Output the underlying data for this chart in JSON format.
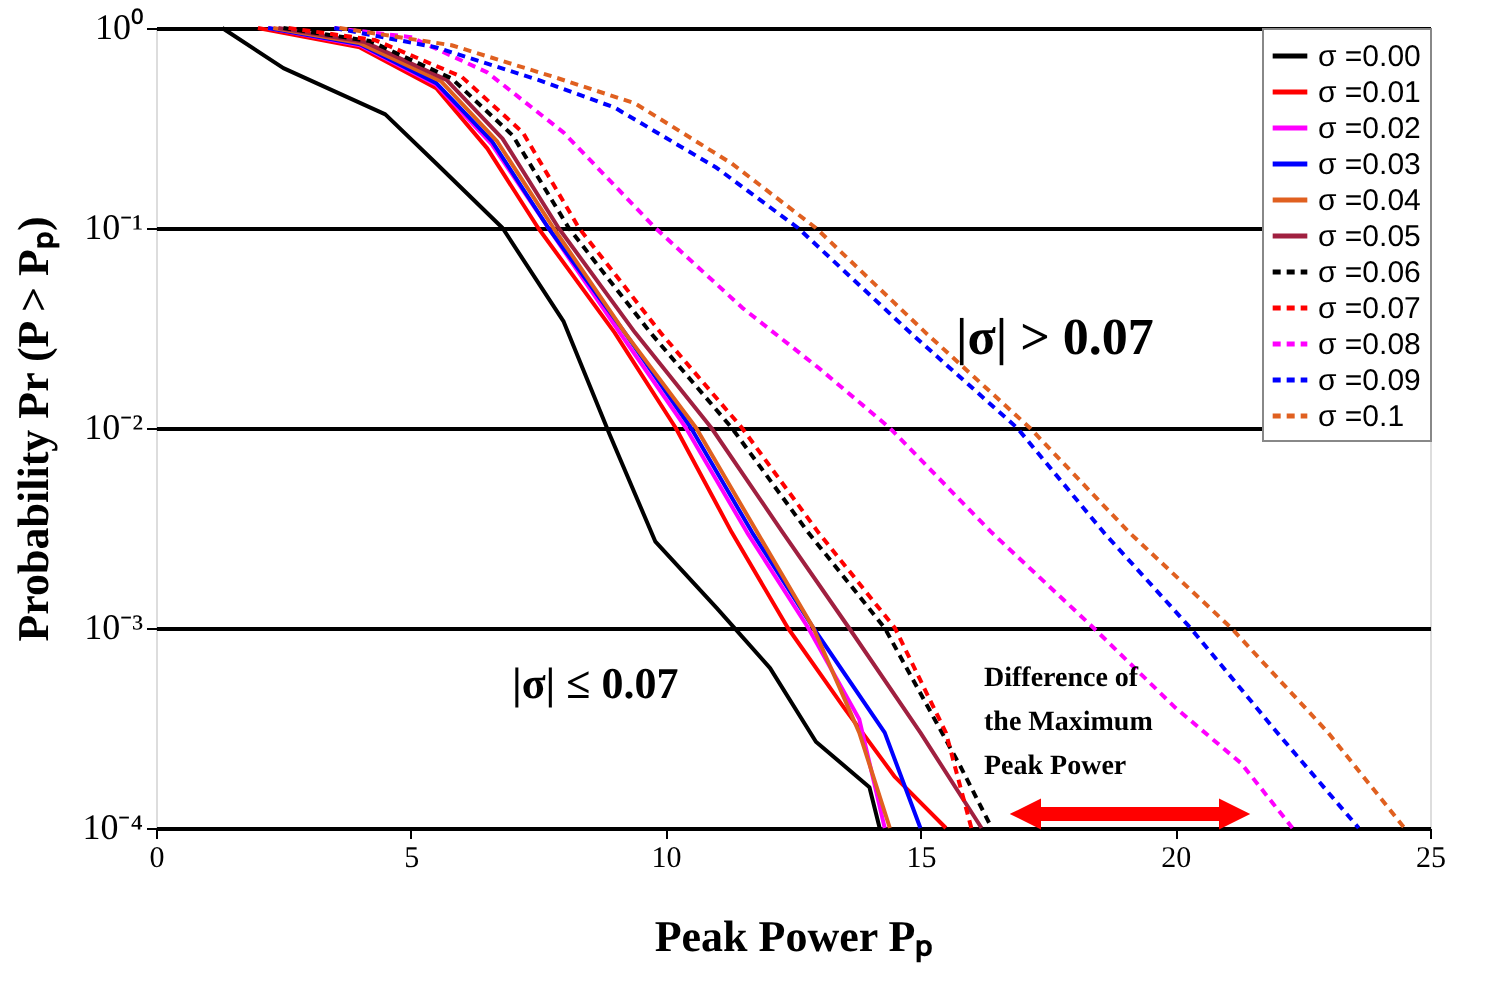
{
  "chart_data": {
    "type": "line",
    "xlabel": "Peak Power  Pₚ",
    "ylabel": "Probability   Pr (P > Pₚ)",
    "xlim": [
      0,
      25
    ],
    "xticks": [
      0,
      5,
      10,
      15,
      20,
      25
    ],
    "ylim": [
      0.0001,
      1
    ],
    "yticks": [
      {
        "value": 1,
        "label": "10⁰"
      },
      {
        "value": 0.1,
        "label": "10⁻¹"
      },
      {
        "value": 0.01,
        "label": "10⁻²"
      },
      {
        "value": 0.001,
        "label": "10⁻³"
      },
      {
        "value": 0.0001,
        "label": "10⁻⁴"
      }
    ],
    "log": "y",
    "grid": "y",
    "legend": "top right",
    "marker": "none",
    "annotations": [
      "|σ| > 0.07",
      "|σ| ≤ 0.07",
      "Difference of\nthe Maximum\nPeak Power"
    ],
    "series": [
      {
        "name": "σ =0.00",
        "color": "#000000",
        "line_style": "solid",
        "x": [
          1.3,
          2.5,
          4.5,
          5.5,
          6.8,
          8.0,
          8.9,
          9.8,
          11.0,
          12.05,
          12.95,
          14.0,
          14.2
        ],
        "values": [
          1,
          0.63,
          0.37,
          0.21,
          0.1,
          0.034,
          0.0093,
          0.0027,
          0.00126,
          0.00063,
          0.00027,
          0.00016,
          0.0001
        ]
      },
      {
        "name": "σ =0.01",
        "color": "#ff0000",
        "line_style": "solid",
        "x": [
          2,
          4,
          5.5,
          6.5,
          7.5,
          9,
          10.2,
          11.3,
          12.4,
          13.5,
          14.5,
          15.5
        ],
        "values": [
          1,
          0.8,
          0.5,
          0.25,
          0.1,
          0.03,
          0.01,
          0.003,
          0.001,
          0.0004,
          0.00018,
          0.0001
        ]
      },
      {
        "name": "σ =0.02",
        "color": "#ff00ff",
        "line_style": "solid",
        "x": [
          2.2,
          4,
          5.5,
          6.6,
          7.7,
          9.1,
          10.4,
          11.6,
          12.8,
          13.8,
          14.3
        ],
        "values": [
          1,
          0.82,
          0.52,
          0.26,
          0.1,
          0.03,
          0.01,
          0.003,
          0.001,
          0.00035,
          0.0001
        ]
      },
      {
        "name": "σ =0.03",
        "color": "#0000ff",
        "line_style": "solid",
        "x": [
          2.2,
          4,
          5.5,
          6.6,
          7.7,
          9.2,
          10.5,
          11.7,
          12.9,
          14.3,
          15.0
        ],
        "values": [
          1,
          0.83,
          0.53,
          0.27,
          0.1,
          0.03,
          0.01,
          0.003,
          0.001,
          0.0003,
          0.0001
        ]
      },
      {
        "name": "σ =0.04",
        "color": "#e06020",
        "line_style": "solid",
        "x": [
          2.3,
          4,
          5.6,
          6.7,
          7.8,
          9.2,
          10.6,
          11.8,
          12.9,
          13.8,
          14.4
        ],
        "values": [
          1,
          0.84,
          0.54,
          0.27,
          0.1,
          0.03,
          0.01,
          0.003,
          0.001,
          0.0003,
          0.0001
        ]
      },
      {
        "name": "σ =0.05",
        "color": "#a02040",
        "line_style": "solid",
        "x": [
          2.4,
          4.1,
          5.7,
          6.8,
          7.9,
          9.4,
          10.9,
          12.3,
          13.6,
          15.0,
          16.2
        ],
        "values": [
          1,
          0.85,
          0.55,
          0.28,
          0.1,
          0.03,
          0.01,
          0.003,
          0.001,
          0.0003,
          0.0001
        ]
      },
      {
        "name": "σ =0.06",
        "color": "#000000",
        "line_style": "dashed",
        "x": [
          2.5,
          4.2,
          5.8,
          7.0,
          8.1,
          9.7,
          11.3,
          12.8,
          14.3,
          15.8,
          16.4
        ],
        "values": [
          1,
          0.86,
          0.56,
          0.29,
          0.1,
          0.03,
          0.01,
          0.003,
          0.001,
          0.0002,
          0.0001
        ]
      },
      {
        "name": "σ =0.07",
        "color": "#ff0000",
        "line_style": "dashed",
        "x": [
          2.6,
          4.3,
          6.0,
          7.2,
          8.3,
          9.9,
          11.5,
          13.0,
          14.5,
          15.5,
          16.0
        ],
        "values": [
          1,
          0.87,
          0.57,
          0.3,
          0.1,
          0.03,
          0.01,
          0.003,
          0.001,
          0.0003,
          0.0001
        ]
      },
      {
        "name": "σ =0.08",
        "color": "#ff00ff",
        "line_style": "dashed",
        "x": [
          3.5,
          5.0,
          6.5,
          8.0,
          9.8,
          11.5,
          13.0,
          14.4,
          16.4,
          18.4,
          20.0,
          21.3,
          22.3
        ],
        "values": [
          1,
          0.9,
          0.6,
          0.3,
          0.1,
          0.04,
          0.02,
          0.01,
          0.003,
          0.001,
          0.0004,
          0.00021,
          0.0001
        ]
      },
      {
        "name": "σ =0.09",
        "color": "#0000ff",
        "line_style": "dashed",
        "x": [
          3.5,
          5.5,
          7.5,
          9.0,
          11.0,
          12.6,
          14.8,
          16.9,
          18.6,
          20.3,
          22.0,
          23.6
        ],
        "values": [
          1,
          0.8,
          0.55,
          0.4,
          0.2,
          0.1,
          0.03,
          0.01,
          0.003,
          0.001,
          0.0003,
          0.0001
        ]
      },
      {
        "name": "σ =0.1",
        "color": "#e06020",
        "line_style": "dashed",
        "x": [
          3.6,
          5.8,
          7.8,
          9.4,
          11.3,
          12.95,
          15.1,
          17.15,
          19.1,
          21.1,
          23.0,
          24.5
        ],
        "values": [
          1,
          0.82,
          0.57,
          0.42,
          0.21,
          0.1,
          0.03,
          0.01,
          0.003,
          0.001,
          0.0003,
          0.0001
        ]
      }
    ]
  }
}
